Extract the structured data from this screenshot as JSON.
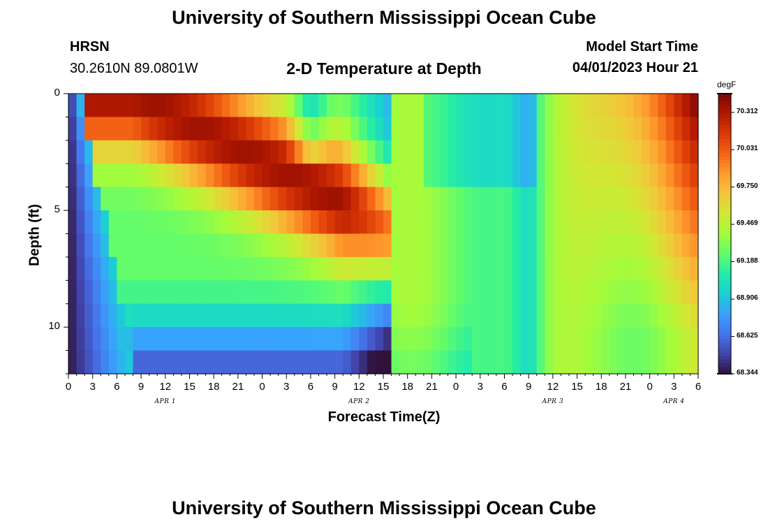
{
  "header": {
    "title": "University of Southern Mississippi Ocean Cube",
    "station": "HRSN",
    "coords": "30.2610N  89.0801W",
    "subtitle": "2-D Temperature at Depth",
    "model_start_label": "Model Start Time",
    "model_start_value": "04/01/2023 Hour 21"
  },
  "footer": {
    "title": "University of Southern Mississippi Ocean Cube"
  },
  "chart_data": {
    "type": "heatmap",
    "title": "2-D Temperature at Depth",
    "xlabel": "Forecast Time(Z)",
    "ylabel": "Depth (ft)",
    "x_hours_range": [
      0,
      78
    ],
    "x_tick_labels": [
      "0",
      "3",
      "6",
      "9",
      "12",
      "15",
      "18",
      "21",
      "0",
      "3",
      "6",
      "9",
      "12",
      "15",
      "18",
      "21",
      "0",
      "3",
      "6",
      "9",
      "12",
      "15",
      "18",
      "21",
      "0",
      "3",
      "6"
    ],
    "day_labels": [
      "APR 1",
      "APR 2",
      "APR 3",
      "APR 4"
    ],
    "day_label_hours": [
      12,
      36,
      60,
      75
    ],
    "y_range_ft": [
      0,
      12
    ],
    "y_tick_labels": [
      "0",
      "5",
      "10"
    ],
    "y_tick_values": [
      0,
      5,
      10
    ],
    "colorbar": {
      "unit": "degF",
      "min": 68.344,
      "max": 70.453,
      "tick_labels": [
        "70.312",
        "70.031",
        "69.750",
        "69.469",
        "69.188",
        "68.906",
        "68.625",
        "68.344"
      ],
      "tick_values": [
        70.312,
        70.031,
        69.75,
        69.469,
        69.188,
        68.906,
        68.625,
        68.344
      ],
      "colors": [
        "#30123b",
        "#4145ab",
        "#4675ed",
        "#39a2fc",
        "#1bcfd4",
        "#24eca6",
        "#61fc6c",
        "#a4fc3b",
        "#d1e834",
        "#f3c63a",
        "#fe9b2d",
        "#f36315",
        "#d93806",
        "#b11901",
        "#7a0402"
      ]
    },
    "grid": false,
    "legend": "right colorbar"
  }
}
